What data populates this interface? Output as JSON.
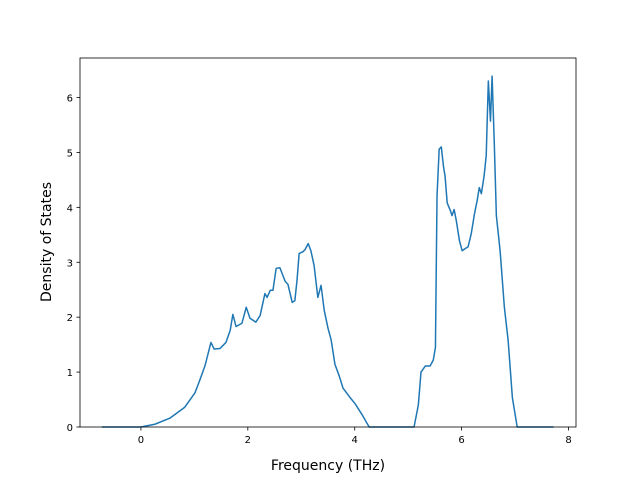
{
  "chart_data": {
    "type": "line",
    "x_label": "Frequency (THz)",
    "y_label": "Density of States",
    "x": [
      -0.73,
      0,
      0.26,
      0.54,
      0.82,
      1.01,
      1.1,
      1.2,
      1.31,
      1.37,
      1.48,
      1.59,
      1.67,
      1.72,
      1.78,
      1.89,
      1.97,
      2.04,
      2.15,
      2.23,
      2.32,
      2.36,
      2.42,
      2.47,
      2.53,
      2.6,
      2.7,
      2.75,
      2.83,
      2.88,
      2.92,
      2.96,
      3.03,
      3.07,
      3.13,
      3.18,
      3.24,
      3.31,
      3.37,
      3.43,
      3.5,
      3.56,
      3.63,
      3.71,
      3.78,
      3.91,
      4.01,
      4.14,
      4.27,
      5.11,
      5.19,
      5.24,
      5.32,
      5.41,
      5.47,
      5.51,
      5.54,
      5.58,
      5.62,
      5.66,
      5.69,
      5.73,
      5.79,
      5.82,
      5.86,
      5.9,
      5.96,
      6.01,
      6.07,
      6.12,
      6.18,
      6.24,
      6.29,
      6.33,
      6.37,
      6.42,
      6.46,
      6.5,
      6.54,
      6.57,
      6.61,
      6.65,
      6.72,
      6.8,
      6.87,
      6.95,
      7.04,
      7.72
    ],
    "series": [
      {
        "color": "#1f77b4",
        "values": [
          0,
          0,
          0.05,
          0.16,
          0.36,
          0.62,
          0.85,
          1.12,
          1.54,
          1.42,
          1.43,
          1.54,
          1.76,
          2.05,
          1.83,
          1.89,
          2.18,
          1.98,
          1.91,
          2.03,
          2.43,
          2.36,
          2.49,
          2.49,
          2.89,
          2.9,
          2.65,
          2.6,
          2.27,
          2.3,
          2.67,
          3.16,
          3.19,
          3.23,
          3.34,
          3.21,
          2.94,
          2.36,
          2.58,
          2.12,
          1.8,
          1.58,
          1.14,
          0.93,
          0.71,
          0.54,
          0.42,
          0.22,
          0,
          0,
          0.4,
          1.0,
          1.11,
          1.11,
          1.22,
          1.45,
          4.21,
          5.06,
          5.1,
          4.75,
          4.57,
          4.08,
          3.94,
          3.85,
          3.96,
          3.76,
          3.39,
          3.21,
          3.25,
          3.28,
          3.52,
          3.88,
          4.12,
          4.36,
          4.25,
          4.57,
          4.94,
          6.3,
          5.57,
          6.39,
          5.21,
          3.85,
          3.21,
          2.18,
          1.58,
          0.53,
          0,
          0
        ]
      }
    ],
    "xlim": [
      -1.14,
      8.14
    ],
    "ylim": [
      0,
      6.72
    ],
    "xticks": [
      0,
      2,
      4,
      6,
      8
    ],
    "yticks": [
      0,
      1,
      2,
      3,
      4,
      5,
      6
    ]
  }
}
